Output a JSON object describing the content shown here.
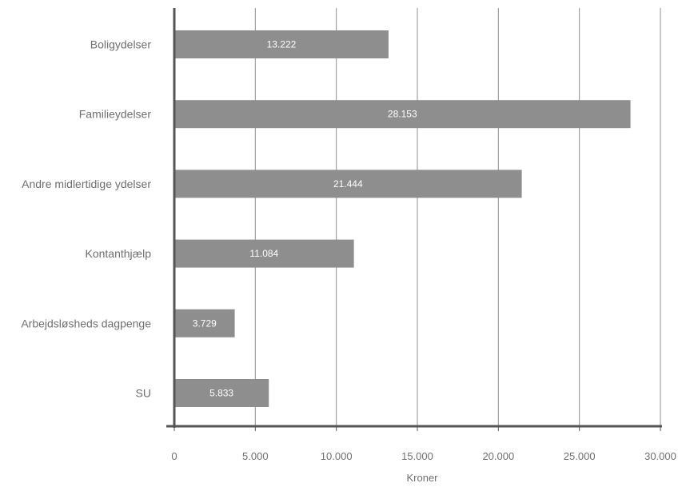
{
  "chart_data": {
    "type": "bar",
    "orientation": "horizontal",
    "categories": [
      "Boligydelser",
      "Familieydelser",
      "Andre midlertidige ydelser",
      "Kontanthjælp",
      "Arbejdsløsheds dagpenge",
      "SU"
    ],
    "values": [
      13222,
      28153,
      21444,
      11084,
      3729,
      5833
    ],
    "value_labels": [
      "13.222",
      "28.153",
      "21.444",
      "11.084",
      "3.729",
      "5.833"
    ],
    "xlabel": "Kroner",
    "ylabel": "",
    "xlim": [
      0,
      30000
    ],
    "x_ticks": [
      0,
      5000,
      10000,
      15000,
      20000,
      25000,
      30000
    ],
    "x_tick_labels": [
      "0",
      "5.000",
      "10.000",
      "15.000",
      "20.000",
      "25.000",
      "30.000"
    ],
    "grid": "vertical",
    "legend": "none",
    "bar_color": "#8e8e8f",
    "grid_color": "#8f8f8f",
    "text_color": "#6f6f6f"
  }
}
